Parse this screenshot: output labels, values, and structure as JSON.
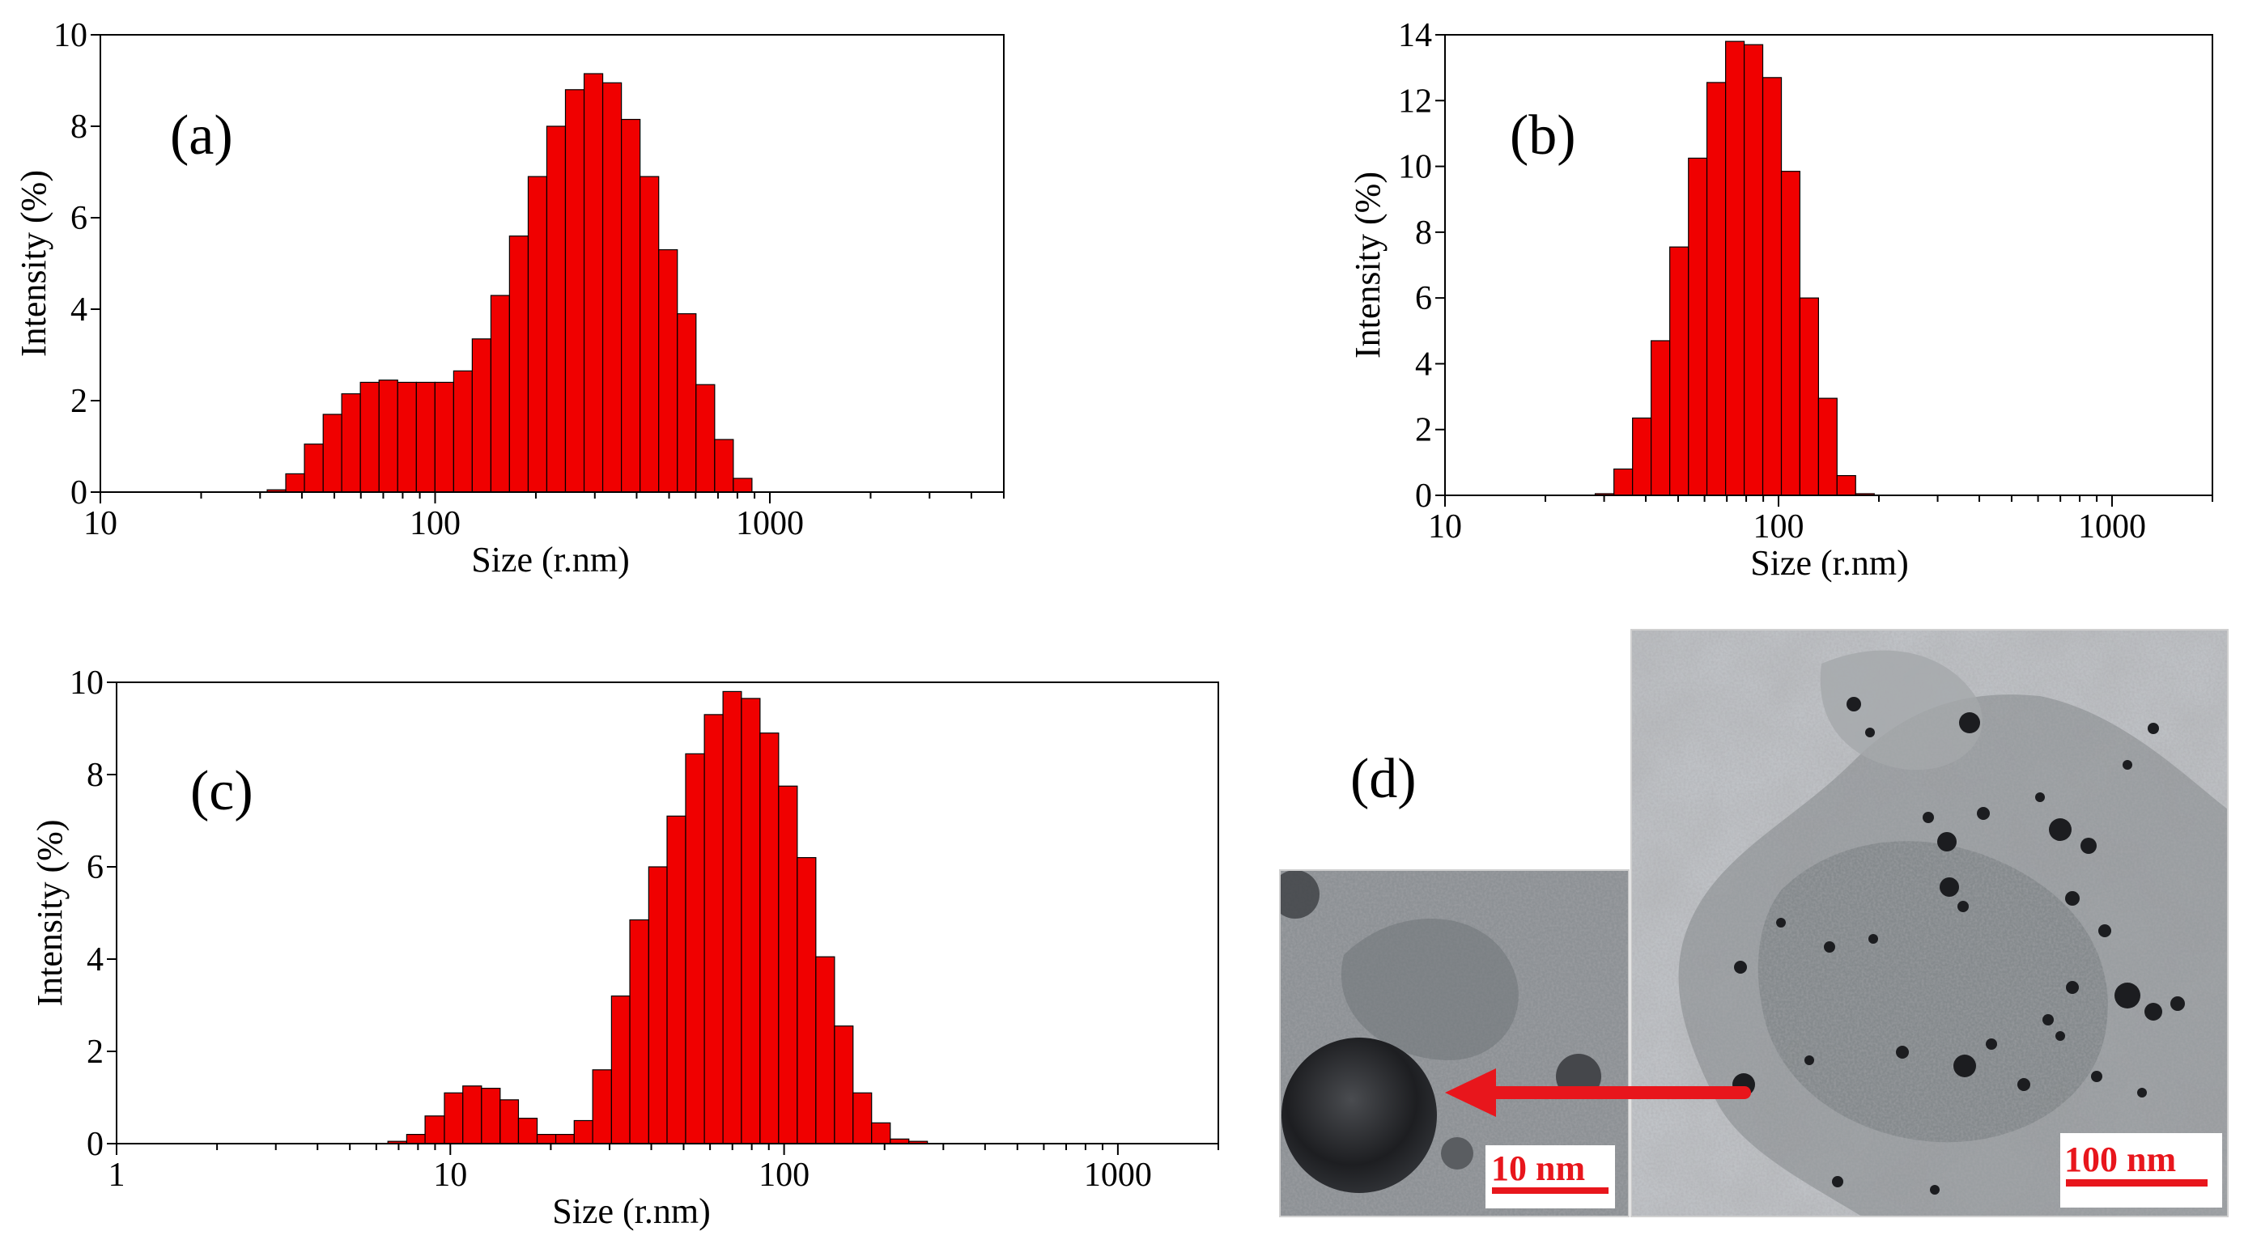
{
  "colors": {
    "bar_fill": "#f00000",
    "bar_stroke": "#000000",
    "arrow": "#e8161c",
    "scale_text": "#e8161c"
  },
  "chart_data": [
    {
      "id": "a",
      "type": "bar",
      "panel_label": "(a)",
      "xscale": "log",
      "xlim": [
        10,
        5000
      ],
      "ylim": [
        0,
        10
      ],
      "xticks": [
        10,
        100,
        1000
      ],
      "xtick_labels": [
        "10",
        "100",
        "1000"
      ],
      "yticks": [
        0,
        2,
        4,
        6,
        8,
        10
      ],
      "ytick_labels": [
        "0",
        "2",
        "4",
        "6",
        "8",
        "10"
      ],
      "xlabel": "Size (r.nm)",
      "ylabel": "Intensity (%)",
      "bins": [
        [
          31.5,
          35.8
        ],
        [
          35.8,
          40.7
        ],
        [
          40.7,
          46.3
        ],
        [
          46.3,
          52.6
        ],
        [
          52.6,
          59.8
        ],
        [
          59.8,
          68
        ],
        [
          68,
          77.3
        ],
        [
          77.3,
          87.9
        ],
        [
          87.9,
          99.9
        ],
        [
          99.9,
          113.6
        ],
        [
          113.6,
          129.1
        ],
        [
          129.1,
          146.8
        ],
        [
          146.8,
          166.8
        ],
        [
          166.8,
          189.7
        ],
        [
          189.7,
          215.6
        ],
        [
          215.6,
          245.1
        ],
        [
          245.1,
          278.7
        ],
        [
          278.7,
          316.8
        ],
        [
          316.8,
          360.2
        ],
        [
          360.2,
          409.5
        ],
        [
          409.5,
          465.6
        ],
        [
          465.6,
          529.3
        ],
        [
          529.3,
          601.8
        ],
        [
          601.8,
          684.2
        ],
        [
          684.2,
          777.8
        ],
        [
          777.8,
          884.3
        ],
        [
          884.3,
          1005.3
        ],
        [
          1005.3,
          1142.9
        ],
        [
          1142.9,
          1299.3
        ]
      ],
      "values": [
        0.05,
        0.4,
        1.05,
        1.7,
        2.15,
        2.4,
        2.45,
        2.4,
        2.4,
        2.4,
        2.65,
        3.35,
        4.3,
        5.6,
        6.9,
        8.0,
        8.8,
        9.15,
        8.95,
        8.15,
        6.9,
        5.3,
        3.9,
        2.35,
        1.15,
        0.3,
        0,
        0,
        0
      ]
    },
    {
      "id": "b",
      "type": "bar",
      "panel_label": "(b)",
      "xscale": "log",
      "xlim": [
        10,
        2000
      ],
      "ylim": [
        0,
        14
      ],
      "xticks": [
        10,
        100,
        1000
      ],
      "xtick_labels": [
        "10",
        "100",
        "1000"
      ],
      "yticks": [
        0,
        2,
        4,
        6,
        8,
        10,
        12,
        14
      ],
      "ytick_labels": [
        "0",
        "2",
        "4",
        "6",
        "8",
        "10",
        "12",
        "14"
      ],
      "xlabel": "Size (r.nm)",
      "ylabel": "Intensity (%)",
      "bins": [
        [
          28.2,
          32.1
        ],
        [
          32.1,
          36.5
        ],
        [
          36.5,
          41.5
        ],
        [
          41.5,
          47.2
        ],
        [
          47.2,
          53.7
        ],
        [
          53.7,
          61
        ],
        [
          61,
          69.4
        ],
        [
          69.4,
          78.9
        ],
        [
          78.9,
          89.7
        ],
        [
          89.7,
          102
        ],
        [
          102,
          115.9
        ],
        [
          115.9,
          131.8
        ],
        [
          131.8,
          149.8
        ],
        [
          149.8,
          170.3
        ],
        [
          170.3,
          193.7
        ],
        [
          193.7,
          220.2
        ],
        [
          220.2,
          250.3
        ]
      ],
      "values": [
        0.05,
        0.8,
        2.35,
        4.7,
        7.55,
        10.25,
        12.55,
        13.8,
        13.7,
        12.7,
        9.85,
        6.0,
        2.95,
        0.6,
        0.05,
        0,
        0
      ]
    },
    {
      "id": "c",
      "type": "bar",
      "panel_label": "(c)",
      "xscale": "log",
      "xlim": [
        1,
        2000
      ],
      "ylim": [
        0,
        10
      ],
      "xticks": [
        1,
        10,
        100,
        1000
      ],
      "xtick_labels": [
        "1",
        "10",
        "100",
        "1000"
      ],
      "yticks": [
        0,
        2,
        4,
        6,
        8,
        10
      ],
      "ytick_labels": [
        "0",
        "2",
        "4",
        "6",
        "8",
        "10"
      ],
      "xlabel": "Size (r.nm)",
      "ylabel": "Intensity (%)",
      "bins": [
        [
          6.5,
          7.4
        ],
        [
          7.4,
          8.4
        ],
        [
          8.4,
          9.6
        ],
        [
          9.6,
          10.9
        ],
        [
          10.9,
          12.4
        ],
        [
          12.4,
          14.1
        ],
        [
          14.1,
          16
        ],
        [
          16,
          18.2
        ],
        [
          18.2,
          20.7
        ],
        [
          20.7,
          23.5
        ],
        [
          23.5,
          26.7
        ],
        [
          26.7,
          30.4
        ],
        [
          30.4,
          34.5
        ],
        [
          34.5,
          39.3
        ],
        [
          39.3,
          44.6
        ],
        [
          44.6,
          50.7
        ],
        [
          50.7,
          57.7
        ],
        [
          57.7,
          65.6
        ],
        [
          65.6,
          74.5
        ],
        [
          74.5,
          84.7
        ],
        [
          84.7,
          96.3
        ],
        [
          96.3,
          109.5
        ],
        [
          109.5,
          124.5
        ],
        [
          124.5,
          141.6
        ],
        [
          141.6,
          160.9
        ],
        [
          160.9,
          182.9
        ],
        [
          182.9,
          208
        ],
        [
          208,
          236.5
        ],
        [
          236.5,
          268.8
        ],
        [
          268.8,
          305.6
        ],
        [
          305.6,
          347.5
        ],
        [
          347.5,
          395.1
        ]
      ],
      "values": [
        0.05,
        0.2,
        0.6,
        1.1,
        1.25,
        1.2,
        0.95,
        0.55,
        0.2,
        0.2,
        0.5,
        1.6,
        3.2,
        4.85,
        6.0,
        7.1,
        8.45,
        9.3,
        9.8,
        9.65,
        8.9,
        7.75,
        6.2,
        4.05,
        2.55,
        1.1,
        0.45,
        0.1,
        0.05,
        0,
        0,
        0
      ]
    }
  ],
  "tem": {
    "panel_label": "(d)",
    "large_scale": "100 nm",
    "small_scale": "10 nm"
  }
}
